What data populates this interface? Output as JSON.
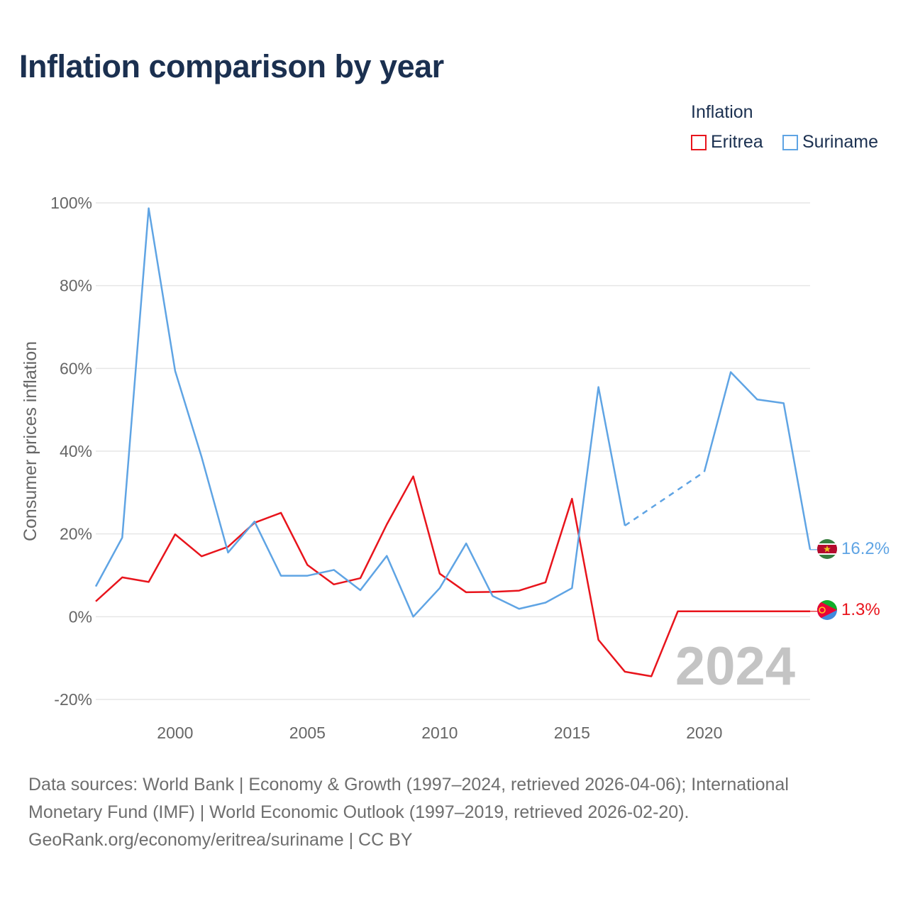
{
  "title": "Inflation comparison by year",
  "legend": {
    "title": "Inflation",
    "items": [
      {
        "label": "Eritrea",
        "color": "#e8141c"
      },
      {
        "label": "Suriname",
        "color": "#5fa4e4"
      }
    ]
  },
  "year_label": "2024",
  "sources": {
    "line1": "Data sources: World Bank | Economy & Growth (1997–2024, retrieved 2026-04-06); International",
    "line2": "Monetary Fund (IMF) | World Economic Outlook (1997–2019, retrieved 2026-02-20).",
    "line3": "GeoRank.org/economy/eritrea/suriname | CC BY"
  },
  "chart_data": {
    "type": "line",
    "title": "Inflation comparison by year",
    "ylabel": "Consumer prices inflation",
    "xlabel": "",
    "xlim": [
      1997,
      2024
    ],
    "ylim": [
      -20,
      100
    ],
    "x_ticks": [
      2000,
      2005,
      2010,
      2015,
      2020
    ],
    "y_ticks": [
      -20,
      0,
      20,
      40,
      60,
      80,
      100
    ],
    "y_tick_labels": [
      "-20%",
      "0%",
      "20%",
      "40%",
      "60%",
      "80%",
      "100%"
    ],
    "grid": true,
    "legend_position": "top-right",
    "series": [
      {
        "name": "Eritrea",
        "color": "#e8141c",
        "x": [
          1997,
          1998,
          1999,
          2000,
          2001,
          2002,
          2003,
          2004,
          2005,
          2006,
          2007,
          2008,
          2009,
          2010,
          2011,
          2012,
          2013,
          2014,
          2015,
          2016,
          2017,
          2018,
          2019,
          2020,
          2021,
          2022,
          2023,
          2024
        ],
        "values": [
          3.7,
          9.5,
          8.4,
          19.9,
          14.6,
          16.9,
          22.7,
          25.1,
          12.5,
          7.8,
          9.3,
          22.3,
          33.9,
          10.4,
          5.9,
          6.0,
          6.3,
          8.3,
          28.5,
          -5.6,
          -13.3,
          -14.4,
          1.3,
          1.3,
          1.3,
          1.3,
          1.3,
          1.3
        ],
        "end_label": "1.3%"
      },
      {
        "name": "Suriname",
        "color": "#5fa4e4",
        "x": [
          1997,
          1998,
          1999,
          2000,
          2001,
          2002,
          2003,
          2004,
          2005,
          2006,
          2007,
          2008,
          2009,
          2010,
          2011,
          2012,
          2013,
          2014,
          2015,
          2016,
          2017,
          2018,
          2019,
          2020,
          2021,
          2022,
          2023,
          2024
        ],
        "values": [
          7.3,
          19.1,
          98.7,
          59.4,
          38.6,
          15.5,
          23.0,
          9.9,
          9.9,
          11.3,
          6.4,
          14.7,
          0.0,
          6.9,
          17.7,
          5.0,
          1.9,
          3.4,
          6.9,
          55.5,
          22.0,
          null,
          null,
          35.0,
          59.1,
          52.5,
          51.6,
          16.2
        ],
        "gap_years": [
          2017,
          2020
        ],
        "end_label": "16.2%"
      }
    ]
  }
}
